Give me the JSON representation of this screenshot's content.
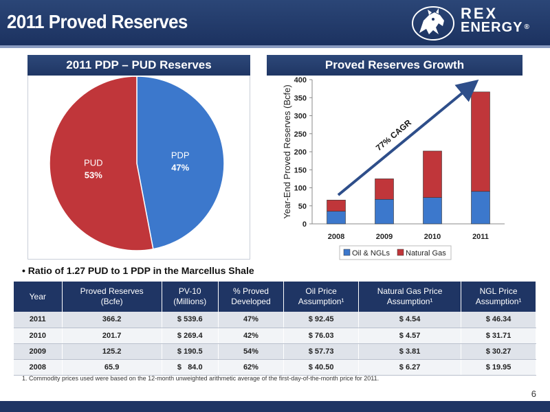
{
  "slide": {
    "title": "2011 Proved Reserves",
    "page_number": "6"
  },
  "logo": {
    "line1": "REX",
    "line2": "ENERGY",
    "registered": "®"
  },
  "pie_panel": {
    "heading": "2011 PDP – PUD Reserves"
  },
  "bar_panel": {
    "heading": "Proved Reserves Growth",
    "annotation": "77% CAGR"
  },
  "bullet": "• Ratio of 1.27 PUD to 1 PDP in the Marcellus Shale",
  "chart_data": [
    {
      "type": "pie",
      "title": "2011 PDP – PUD Reserves",
      "slices": [
        {
          "label": "PDP",
          "value": 47,
          "display": "47%",
          "color": "#3c78cc"
        },
        {
          "label": "PUD",
          "value": 53,
          "display": "53%",
          "color": "#c0363a"
        }
      ]
    },
    {
      "type": "bar",
      "stacked": true,
      "title": "Proved Reserves Growth",
      "categories": [
        "2008",
        "2009",
        "2010",
        "2011"
      ],
      "series": [
        {
          "name": "Oil & NGLs",
          "color": "#3c78cc",
          "values": [
            35,
            68,
            73,
            90
          ]
        },
        {
          "name": "Natural Gas",
          "color": "#c0363a",
          "values": [
            31,
            57,
            129,
            276
          ]
        }
      ],
      "ylabel": "Year-End Proved Reserves (Bcfe)",
      "xlabel": "",
      "ylim": [
        0,
        400
      ],
      "yticks": [
        0,
        50,
        100,
        150,
        200,
        250,
        300,
        350,
        400
      ],
      "grid": false,
      "legend": "bottom"
    }
  ],
  "table": {
    "headers": [
      {
        "l1": "Year",
        "l2": ""
      },
      {
        "l1": "Proved Reserves",
        "l2": "(Bcfe)"
      },
      {
        "l1": "PV-10",
        "l2": "(Millions)"
      },
      {
        "l1": "% Proved",
        "l2": "Developed"
      },
      {
        "l1": "Oil Price",
        "l2": "Assumption¹"
      },
      {
        "l1": "Natural Gas Price",
        "l2": "Assumption¹"
      },
      {
        "l1": "NGL Price",
        "l2": "Assumption¹"
      }
    ],
    "rows": [
      [
        "2011",
        "366.2",
        "$ 539.6",
        "47%",
        "$ 92.45",
        "$ 4.54",
        "$ 46.34"
      ],
      [
        "2010",
        "201.7",
        "$ 269.4",
        "42%",
        "$ 76.03",
        "$ 4.57",
        "$ 31.71"
      ],
      [
        "2009",
        "125.2",
        "$ 190.5",
        "54%",
        "$ 57.73",
        "$ 3.81",
        "$ 30.27"
      ],
      [
        "2008",
        "65.9",
        "$   84.0",
        "62%",
        "$ 40.50",
        "$ 6.27",
        "$ 19.95"
      ]
    ]
  },
  "footnote": "1. Commodity prices used were based on the 12-month unweighted arithmetic average of the first-day-of-the-month price for 2011.",
  "colors": {
    "navy": "#1f3564",
    "blue": "#3c78cc",
    "red": "#c0363a",
    "arrow": "#2e4e8a"
  }
}
